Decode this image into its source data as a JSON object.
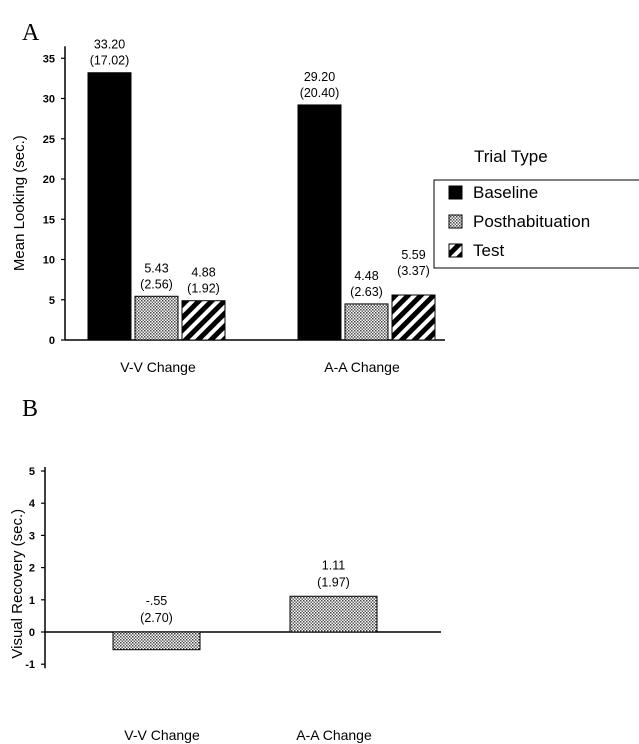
{
  "chart_data": [
    {
      "panel": "A",
      "type": "bar",
      "ylabel": "Mean Looking (sec.)",
      "ylim": [
        0,
        36
      ],
      "yticks": [
        0,
        5,
        10,
        15,
        20,
        25,
        30,
        35
      ],
      "categories": [
        "V-V Change",
        "A-A Change"
      ],
      "series": [
        {
          "name": "Baseline",
          "values": [
            33.2,
            29.2
          ],
          "sd": [
            "(17.02)",
            "(20.40)"
          ],
          "labels": [
            "33.20",
            "29.20"
          ],
          "pattern": "solid"
        },
        {
          "name": "Posthabituation",
          "values": [
            5.43,
            4.48
          ],
          "sd": [
            "(2.56)",
            "(2.63)"
          ],
          "labels": [
            "5.43",
            "4.48"
          ],
          "pattern": "dotted"
        },
        {
          "name": "Test",
          "values": [
            4.88,
            5.59
          ],
          "sd": [
            "(1.92)",
            "(3.37)"
          ],
          "labels": [
            "4.88",
            "5.59"
          ],
          "pattern": "hatched"
        }
      ],
      "legend": {
        "title": "Trial Type",
        "placement": "right"
      }
    },
    {
      "panel": "B",
      "type": "bar",
      "ylabel": "Visual Recovery  (sec.)",
      "ylim": [
        -1,
        5
      ],
      "yticks": [
        -1,
        0,
        1,
        2,
        3,
        4,
        5
      ],
      "categories": [
        "V-V Change",
        "A-A Change"
      ],
      "series": [
        {
          "values": [
            -0.55,
            1.11
          ],
          "labels": [
            "-.55",
            "1.11"
          ],
          "sd": [
            "(2.70)",
            "(1.97)"
          ],
          "pattern": "dotted"
        }
      ]
    }
  ]
}
